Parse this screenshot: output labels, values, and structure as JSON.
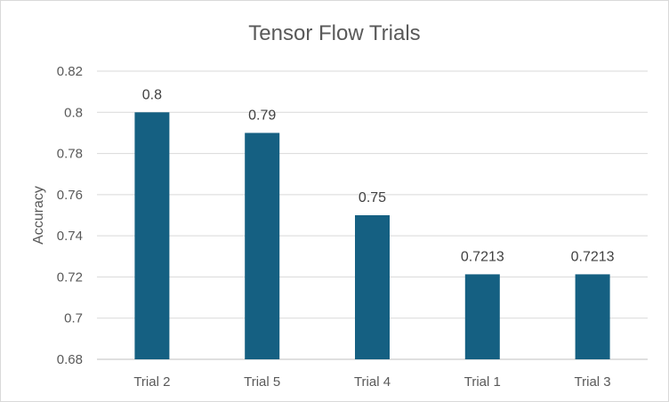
{
  "chart_data": {
    "type": "bar",
    "title": "Tensor Flow Trials",
    "xlabel": "",
    "ylabel": "Accuracy",
    "categories": [
      "Trial 2",
      "Trial 5",
      "Trial 4",
      "Trial 1",
      "Trial 3"
    ],
    "values": [
      0.8,
      0.79,
      0.75,
      0.7213,
      0.7213
    ],
    "data_labels": [
      "0.8",
      "0.79",
      "0.75",
      "0.7213",
      "0.7213"
    ],
    "ylim": [
      0.68,
      0.82
    ],
    "yticks": [
      0.68,
      0.7,
      0.72,
      0.74,
      0.76,
      0.78,
      0.8,
      0.82
    ],
    "ytick_labels": [
      "0.68",
      "0.7",
      "0.72",
      "0.74",
      "0.76",
      "0.78",
      "0.8",
      "0.82"
    ],
    "grid": true,
    "legend": "none",
    "bar_color": "#156082"
  }
}
